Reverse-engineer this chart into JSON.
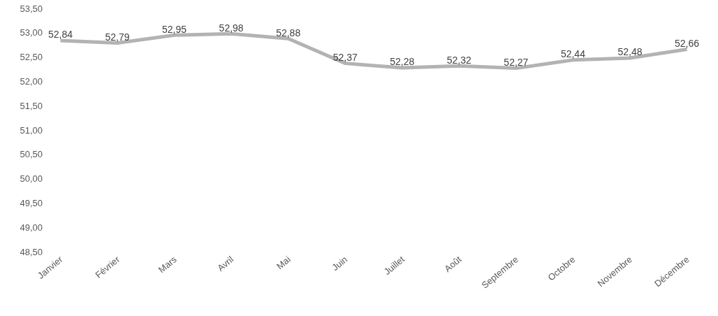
{
  "chart_data": {
    "type": "line",
    "categories": [
      "Janvier",
      "Février",
      "Mars",
      "Avril",
      "Mai",
      "Juin",
      "Juillet",
      "Août",
      "Septembre",
      "Octobre",
      "Novembre",
      "Décembre"
    ],
    "series": [
      {
        "color": "#b3b3b3",
        "values": [
          52.84,
          52.79,
          52.95,
          52.98,
          52.88,
          52.37,
          52.28,
          52.32,
          52.27,
          52.44,
          52.48,
          52.66
        ],
        "value_labels": [
          "52,84",
          "52,79",
          "52,95",
          "52,98",
          "52,88",
          "52,37",
          "52,28",
          "52,32",
          "52,27",
          "52,44",
          "52,48",
          "52,66"
        ]
      }
    ],
    "ylim": [
      48.5,
      53.5
    ],
    "yticks": [
      {
        "value": 48.5,
        "label": "48,50"
      },
      {
        "value": 49,
        "label": "49,00"
      },
      {
        "value": 49.5,
        "label": "49,50"
      },
      {
        "value": 50,
        "label": "50,00"
      },
      {
        "value": 50.5,
        "label": "50,50"
      },
      {
        "value": 51,
        "label": "51,00"
      },
      {
        "value": 51.5,
        "label": "51,50"
      },
      {
        "value": 52,
        "label": "52,00"
      },
      {
        "value": 52.5,
        "label": "52,50"
      },
      {
        "value": 53,
        "label": "53,00"
      },
      {
        "value": 53.5,
        "label": "53,50"
      }
    ],
    "grid": false,
    "legend": false,
    "marker": "none",
    "line_style": "solid"
  }
}
